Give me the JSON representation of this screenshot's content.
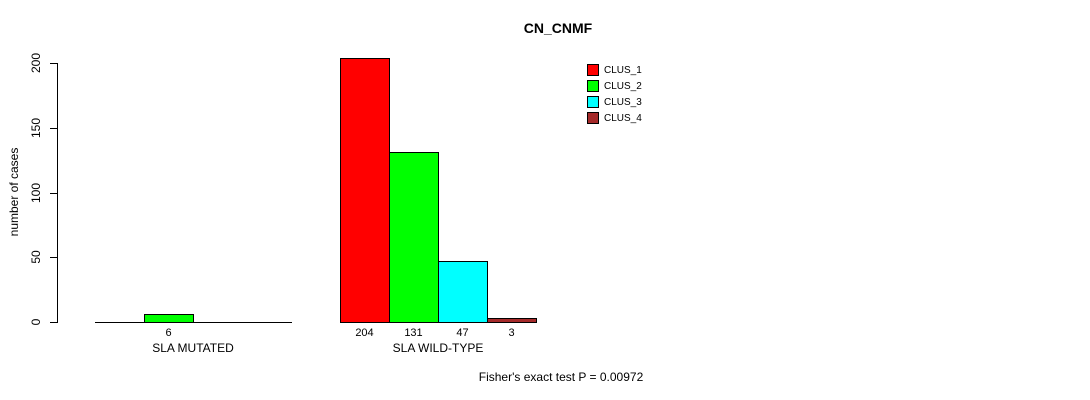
{
  "chart_data": {
    "type": "bar",
    "title": "CN_CNMF",
    "ylabel": "number of cases",
    "ylim": [
      0,
      200
    ],
    "yticks": [
      0,
      50,
      100,
      150,
      200
    ],
    "grid": false,
    "legend_position": "top-right",
    "series": [
      {
        "name": "CLUS_1",
        "color": "#FF0000"
      },
      {
        "name": "CLUS_2",
        "color": "#00FF00"
      },
      {
        "name": "CLUS_3",
        "color": "#00FFFF"
      },
      {
        "name": "CLUS_4",
        "color": "#A52A2A"
      }
    ],
    "categories": [
      "SLA MUTATED",
      "SLA WILD-TYPE"
    ],
    "groups": [
      {
        "label": "SLA MUTATED",
        "values": [
          0,
          6,
          0,
          0
        ]
      },
      {
        "label": "SLA WILD-TYPE",
        "values": [
          204,
          131,
          47,
          3
        ]
      }
    ],
    "annotation": "Fisher's exact test P = 0.00972"
  }
}
